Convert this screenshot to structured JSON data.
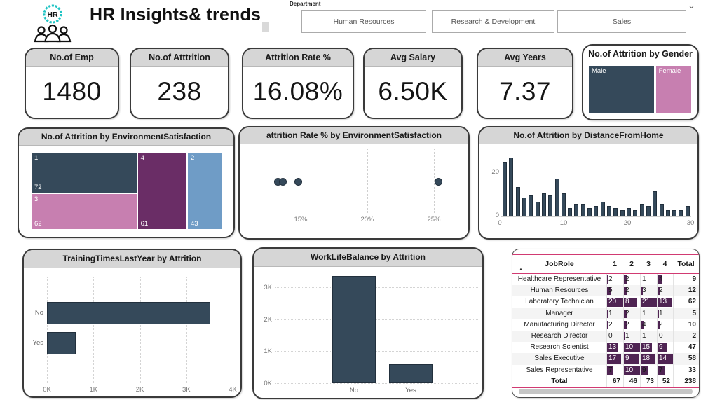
{
  "app": {
    "title": "HR Insights& trends",
    "department_label": "Department",
    "department_options": [
      "Human Resources",
      "Research & Development",
      "Sales"
    ],
    "logo_text": "HR"
  },
  "colors": {
    "slate": "#35495a",
    "slate_border": "#22303d",
    "pink": "#c77fb0",
    "purple": "#6a2d66",
    "blue": "#6f9cc6",
    "teal": "#20c4c4",
    "table_line": "#d13a72",
    "databar": "#4f2453",
    "card_head": "#d6d6d6"
  },
  "kpis": [
    {
      "label": "No.of Emp",
      "value": "1480"
    },
    {
      "label": "No.of Atttrition",
      "value": "238"
    },
    {
      "label": "Attrition Rate %",
      "value": "16.08%"
    },
    {
      "label": "Avg Salary",
      "value": "6.50K"
    },
    {
      "label": "Avg Years",
      "value": "7.37"
    }
  ],
  "gender_card": {
    "title": "No.of Attrition by Gender",
    "segments": [
      {
        "label": "Male",
        "share": 63,
        "color": "#35495a"
      },
      {
        "label": "Female",
        "share": 34,
        "color": "#c77fb0"
      }
    ]
  },
  "chart_data": [
    {
      "type": "treemap",
      "title": "No.of Attrition by EnvironmentSatisfaction",
      "items": [
        {
          "category": "1",
          "value": 72,
          "color": "#35495a"
        },
        {
          "category": "3",
          "value": 62,
          "color": "#c77fb0"
        },
        {
          "category": "4",
          "value": 61,
          "color": "#6a2d66"
        },
        {
          "category": "2",
          "value": 43,
          "color": "#6f9cc6"
        }
      ]
    },
    {
      "type": "scatter",
      "title": "attrition Rate % by EnvironmentSatisfaction",
      "x_values_pct": [
        13.3,
        13.65,
        14.8,
        25.35
      ],
      "xticks": [
        {
          "label": "15%",
          "value": 15
        },
        {
          "label": "20%",
          "value": 20
        },
        {
          "label": "25%",
          "value": 25
        }
      ],
      "xlim": [
        12.5,
        26.2
      ]
    },
    {
      "type": "bar",
      "title": "No.of Attrition by DistanceFromHome",
      "x": [
        1,
        2,
        3,
        4,
        5,
        6,
        7,
        8,
        9,
        10,
        11,
        12,
        13,
        14,
        15,
        16,
        17,
        18,
        19,
        20,
        21,
        22,
        23,
        24,
        25,
        26,
        27,
        28,
        29
      ],
      "values": [
        26,
        28,
        14,
        9,
        10,
        7,
        11,
        10,
        18,
        11,
        4,
        6,
        6,
        4,
        5,
        7,
        5,
        4,
        3,
        4,
        3,
        6,
        5,
        12,
        6,
        3,
        3,
        3,
        5
      ],
      "xticks": [
        "0",
        "10",
        "20",
        "30"
      ],
      "yticks": [
        "0",
        "20"
      ],
      "ylim": [
        0,
        30
      ]
    },
    {
      "type": "hbar",
      "title": "TrainingTimesLastYear by Attrition",
      "categories": [
        "No",
        "Yes"
      ],
      "values": [
        3520,
        620
      ],
      "xticks": [
        "0K",
        "1K",
        "2K",
        "3K",
        "4K"
      ],
      "xlim": [
        0,
        4000
      ]
    },
    {
      "type": "bar",
      "title": "WorkLifeBalance by Attrition",
      "categories": [
        "No",
        "Yes"
      ],
      "values": [
        3350,
        600
      ],
      "yticks": [
        "0K",
        "1K",
        "2K",
        "3K"
      ],
      "ylim": [
        0,
        3500
      ]
    },
    {
      "type": "table",
      "columns": [
        "JobRole",
        "1",
        "2",
        "3",
        "4",
        "Total"
      ],
      "rows": [
        {
          "role": "Healthcare Representative",
          "values": [
            2,
            2,
            1,
            4
          ],
          "total": 9
        },
        {
          "role": "Human Resources",
          "values": [
            5,
            2,
            3,
            2
          ],
          "total": 12
        },
        {
          "role": "Laboratory Technician",
          "values": [
            20,
            8,
            21,
            13
          ],
          "total": 62
        },
        {
          "role": "Manager",
          "values": [
            1,
            2,
            1,
            1
          ],
          "total": 5
        },
        {
          "role": "Manufacturing Director",
          "values": [
            2,
            2,
            4,
            2
          ],
          "total": 10
        },
        {
          "role": "Research Director",
          "values": [
            0,
            1,
            1,
            0
          ],
          "total": 2
        },
        {
          "role": "Research Scientist",
          "values": [
            13,
            10,
            15,
            9
          ],
          "total": 47
        },
        {
          "role": "Sales Executive",
          "values": [
            17,
            9,
            18,
            14
          ],
          "total": 58
        },
        {
          "role": "Sales Representative",
          "values": [
            7,
            10,
            9,
            7
          ],
          "total": 33
        }
      ],
      "total_row": {
        "label": "Total",
        "values": [
          67,
          46,
          73,
          52
        ],
        "total": 238
      },
      "column_max": [
        20,
        10,
        21,
        14
      ]
    }
  ]
}
